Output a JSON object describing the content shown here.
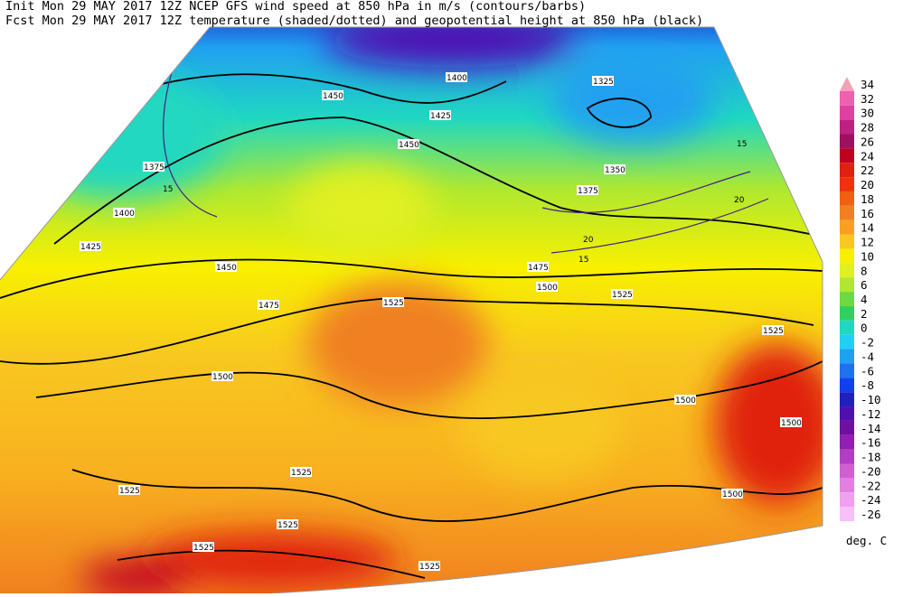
{
  "header": {
    "init_line": "Init  Mon 29 MAY 2017 12Z  NCEP GFS wind speed at 850 hPa in m/s (contours/barbs)",
    "fcst_line": "Fcst Mon 29 MAY 2017 12Z  temperature (shaded/dotted) and geopotential height at 850 hPa (black)"
  },
  "colorbar": {
    "levels": [
      34,
      32,
      30,
      28,
      26,
      24,
      22,
      20,
      18,
      16,
      14,
      12,
      10,
      8,
      6,
      4,
      2,
      0,
      -2,
      -4,
      -6,
      -8,
      -10,
      -12,
      -14,
      -16,
      -18,
      -20,
      -22,
      -24,
      -26
    ],
    "colors": [
      "#f4a0b8",
      "#f060b0",
      "#e040a0",
      "#c02080",
      "#a01060",
      "#c00020",
      "#e02010",
      "#f03010",
      "#f06010",
      "#f08020",
      "#f8a020",
      "#f8c820",
      "#f8f000",
      "#e0f020",
      "#b0e830",
      "#70d840",
      "#30d060",
      "#20d8c0",
      "#20d0f0",
      "#20a0f0",
      "#2070f0",
      "#1040f0",
      "#2020c0",
      "#5010b0",
      "#7010a0",
      "#9020b0",
      "#b040c0",
      "#d060d0",
      "#e080e0",
      "#f0a0f0",
      "#f8c0f8"
    ],
    "unit": "deg. C"
  },
  "map": {
    "height_labels": [
      "1450",
      "1400",
      "1325",
      "1425",
      "1450",
      "1375",
      "1350",
      "1375",
      "1400",
      "1425",
      "1450",
      "1475",
      "1500",
      "1525",
      "1525",
      "1475",
      "1500",
      "1500",
      "1525",
      "1500",
      "1525",
      "1525",
      "1500",
      "1525",
      "1525",
      "1525"
    ],
    "wind_labels": [
      "15",
      "15",
      "20",
      "20",
      "15"
    ]
  }
}
